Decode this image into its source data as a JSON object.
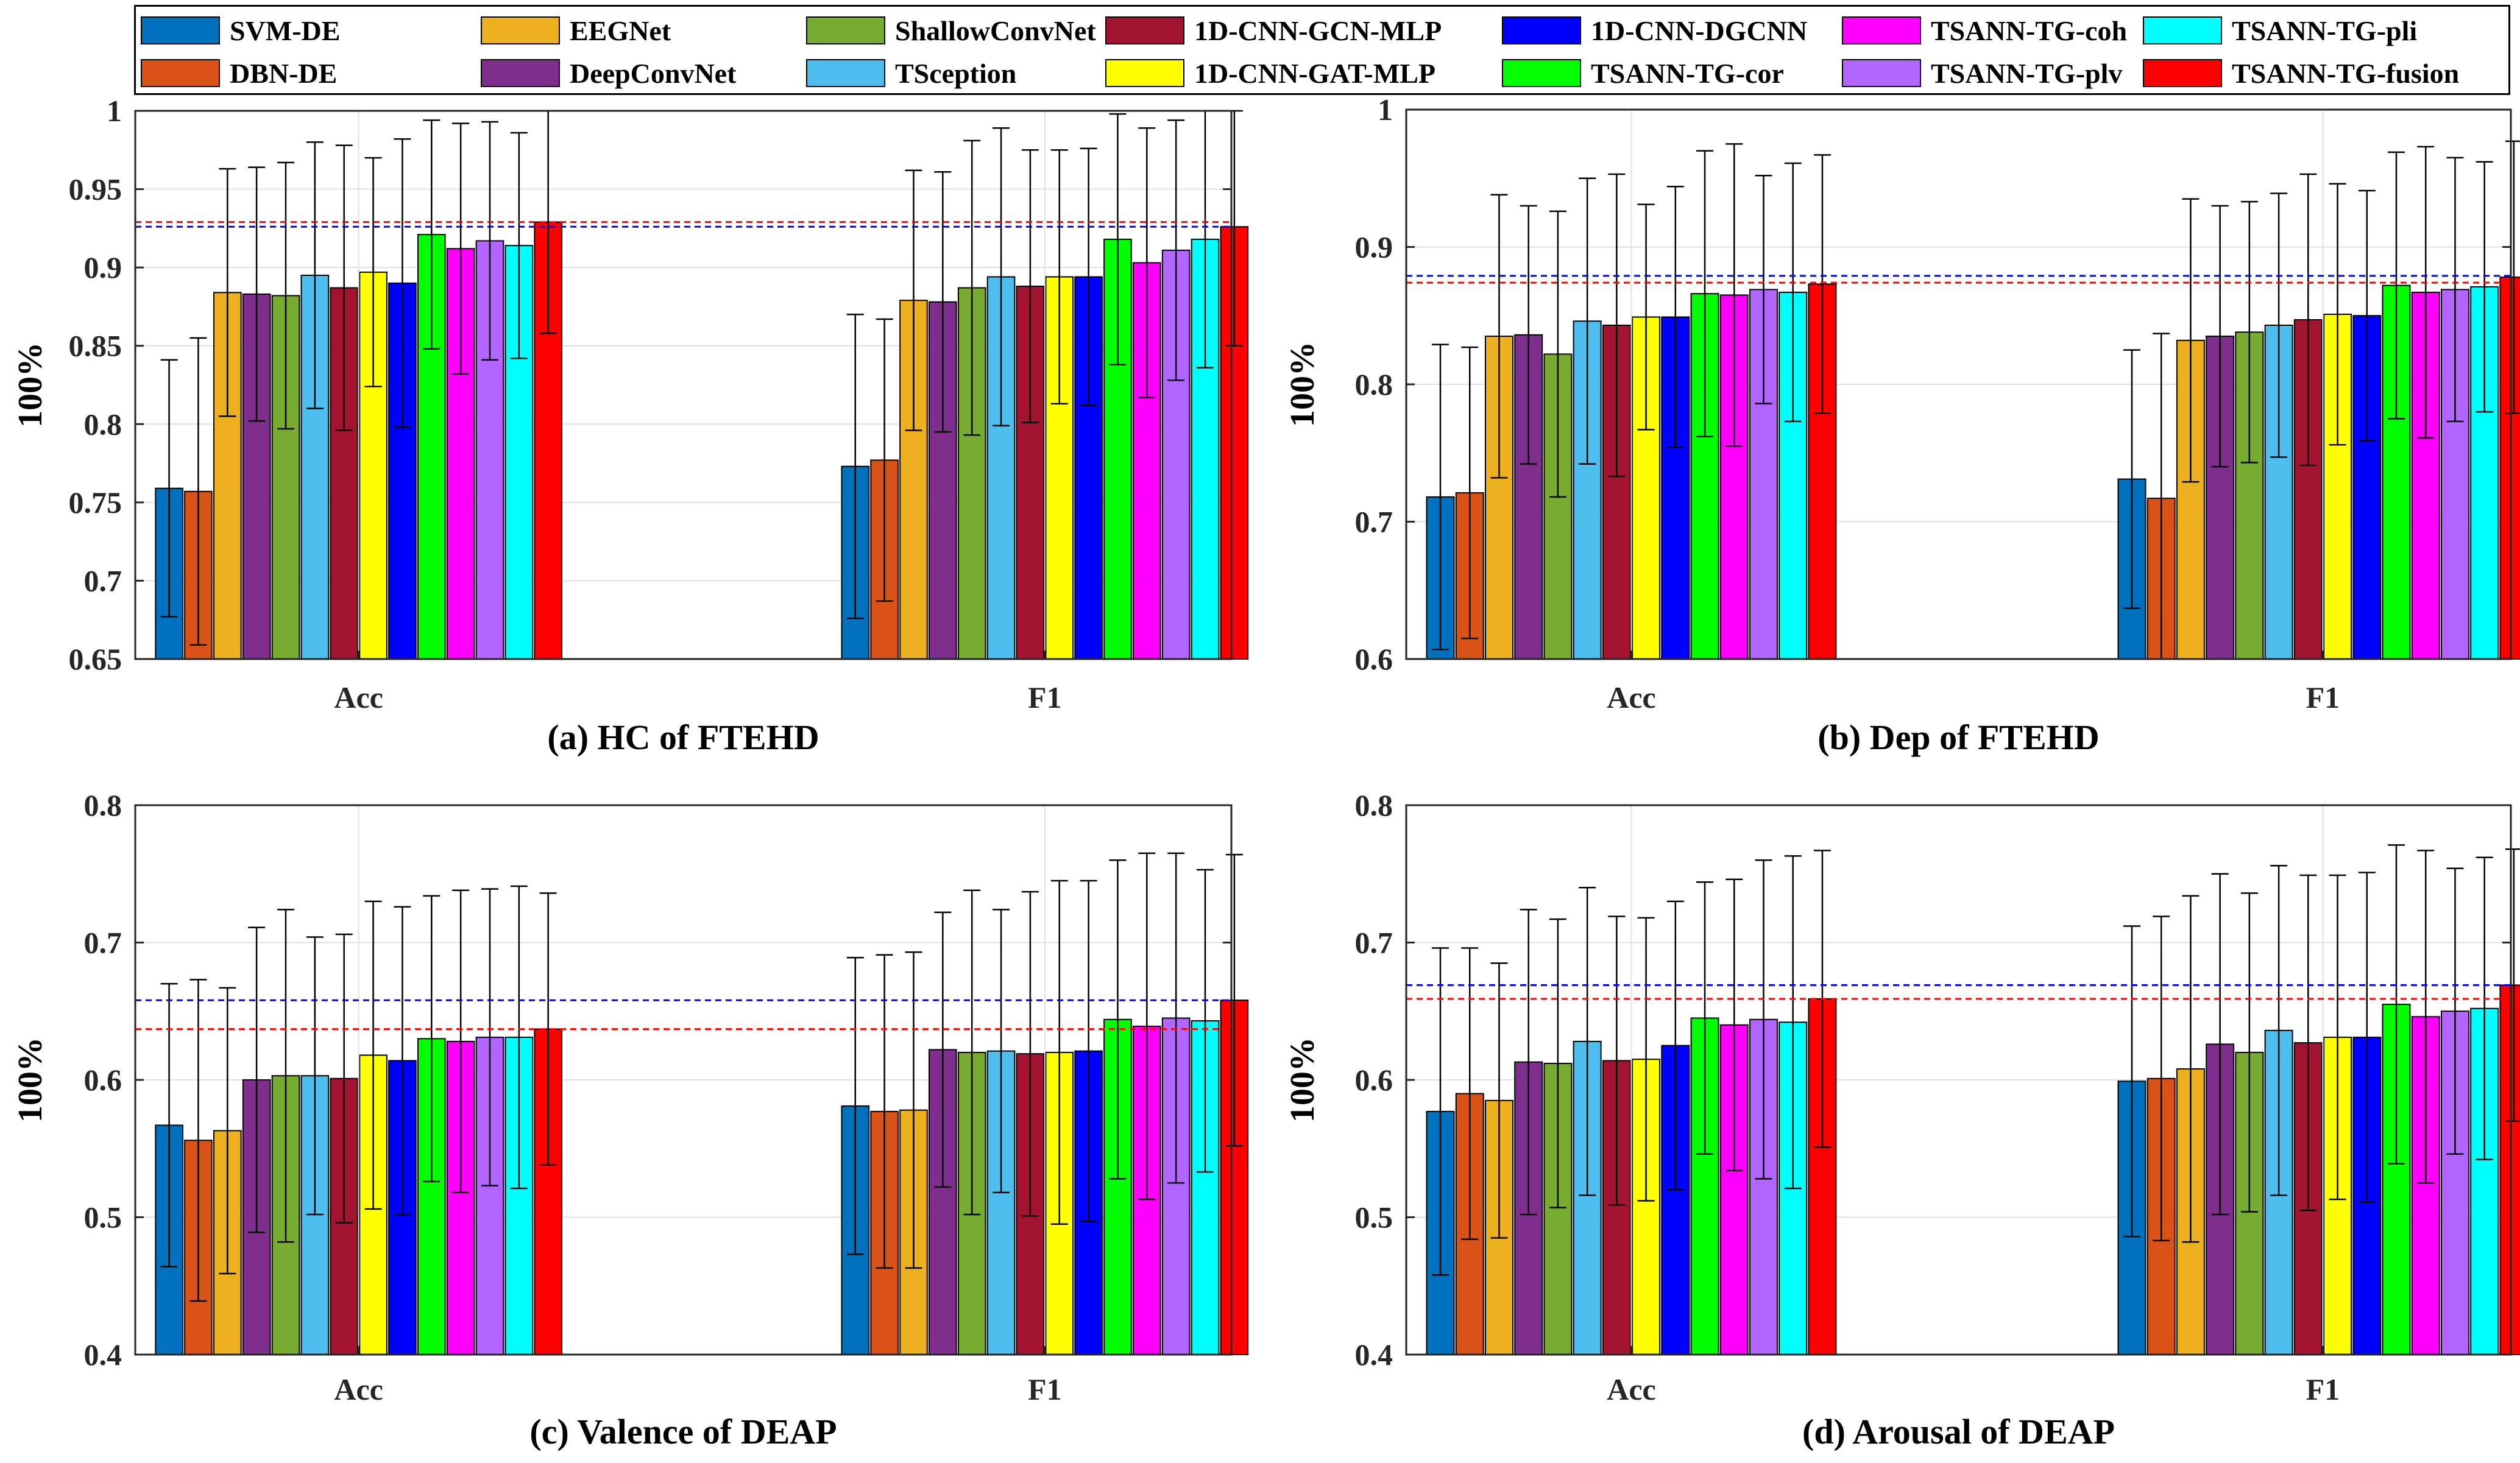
{
  "legend_entries": [
    {
      "name": "SVM-DE",
      "color": "#0072BD"
    },
    {
      "name": "DBN-DE",
      "color": "#D95319"
    },
    {
      "name": "EEGNet",
      "color": "#EDB120"
    },
    {
      "name": "DeepConvNet",
      "color": "#7E2F8E"
    },
    {
      "name": "ShallowConvNet",
      "color": "#77AC30"
    },
    {
      "name": "TSception",
      "color": "#4DBEEE"
    },
    {
      "name": "1D-CNN-GCN-MLP",
      "color": "#A2142F"
    },
    {
      "name": "1D-CNN-GAT-MLP",
      "color": "#FFFF00"
    },
    {
      "name": "1D-CNN-DGCNN",
      "color": "#0000FF"
    },
    {
      "name": "TSANN-TG-cor",
      "color": "#00FF00"
    },
    {
      "name": "TSANN-TG-coh",
      "color": "#FF00FF"
    },
    {
      "name": "TSANN-TG-plv",
      "color": "#B266FF"
    },
    {
      "name": "TSANN-TG-pli",
      "color": "#00FFFF"
    },
    {
      "name": "TSANN-TG-fusion",
      "color": "#FF0000"
    }
  ],
  "chart_data": [
    {
      "type": "bar",
      "title": "(a) HC of FTEHD",
      "ylabel": "100%",
      "categories": [
        "Acc",
        "F1"
      ],
      "ylim": [
        0.65,
        1
      ],
      "yticks": [
        "0.65",
        "0.7",
        "0.75",
        "0.8",
        "0.85",
        "0.9",
        "0.95",
        "1"
      ],
      "reference_lines": [
        {
          "color": "#0000FF",
          "value": 0.926
        },
        {
          "color": "#FF0000",
          "value": 0.929
        }
      ],
      "series": [
        {
          "name": "SVM-DE",
          "values": [
            0.759,
            0.773
          ],
          "errors": [
            0.082,
            0.097
          ]
        },
        {
          "name": "DBN-DE",
          "values": [
            0.757,
            0.777
          ],
          "errors": [
            0.098,
            0.09
          ]
        },
        {
          "name": "EEGNet",
          "values": [
            0.884,
            0.879
          ],
          "errors": [
            0.079,
            0.083
          ]
        },
        {
          "name": "DeepConvNet",
          "values": [
            0.883,
            0.878
          ],
          "errors": [
            0.081,
            0.083
          ]
        },
        {
          "name": "ShallowConvNet",
          "values": [
            0.882,
            0.887
          ],
          "errors": [
            0.085,
            0.094
          ]
        },
        {
          "name": "TSception",
          "values": [
            0.895,
            0.894
          ],
          "errors": [
            0.085,
            0.095
          ]
        },
        {
          "name": "1D-CNN-GCN-MLP",
          "values": [
            0.887,
            0.888
          ],
          "errors": [
            0.091,
            0.087
          ]
        },
        {
          "name": "1D-CNN-GAT-MLP",
          "values": [
            0.897,
            0.894
          ],
          "errors": [
            0.073,
            0.081
          ]
        },
        {
          "name": "1D-CNN-DGCNN",
          "values": [
            0.89,
            0.894
          ],
          "errors": [
            0.092,
            0.082
          ]
        },
        {
          "name": "TSANN-TG-cor",
          "values": [
            0.921,
            0.918
          ],
          "errors": [
            0.073,
            0.08
          ]
        },
        {
          "name": "TSANN-TG-coh",
          "values": [
            0.912,
            0.903
          ],
          "errors": [
            0.08,
            0.086
          ]
        },
        {
          "name": "TSANN-TG-plv",
          "values": [
            0.917,
            0.911
          ],
          "errors": [
            0.076,
            0.083
          ]
        },
        {
          "name": "TSANN-TG-pli",
          "values": [
            0.914,
            0.918
          ],
          "errors": [
            0.072,
            0.082
          ]
        },
        {
          "name": "TSANN-TG-fusion",
          "values": [
            0.929,
            0.926
          ],
          "errors": [
            0.071,
            0.076
          ]
        }
      ]
    },
    {
      "type": "bar",
      "title": "(b) Dep of FTEHD",
      "ylabel": "100%",
      "categories": [
        "Acc",
        "F1"
      ],
      "ylim": [
        0.6,
        1
      ],
      "yticks": [
        "0.6",
        "0.7",
        "0.8",
        "0.9",
        "1"
      ],
      "reference_lines": [
        {
          "color": "#0000FF",
          "value": 0.879
        },
        {
          "color": "#FF0000",
          "value": 0.874
        }
      ],
      "series": [
        {
          "name": "SVM-DE",
          "values": [
            0.718,
            0.731
          ],
          "errors": [
            0.111,
            0.094
          ]
        },
        {
          "name": "DBN-DE",
          "values": [
            0.721,
            0.717
          ],
          "errors": [
            0.106,
            0.12
          ]
        },
        {
          "name": "EEGNet",
          "values": [
            0.835,
            0.832
          ],
          "errors": [
            0.103,
            0.103
          ]
        },
        {
          "name": "DeepConvNet",
          "values": [
            0.836,
            0.835
          ],
          "errors": [
            0.094,
            0.095
          ]
        },
        {
          "name": "ShallowConvNet",
          "values": [
            0.822,
            0.838
          ],
          "errors": [
            0.104,
            0.095
          ]
        },
        {
          "name": "TSception",
          "values": [
            0.846,
            0.843
          ],
          "errors": [
            0.104,
            0.096
          ]
        },
        {
          "name": "1D-CNN-GCN-MLP",
          "values": [
            0.843,
            0.847
          ],
          "errors": [
            0.11,
            0.106
          ]
        },
        {
          "name": "1D-CNN-GAT-MLP",
          "values": [
            0.849,
            0.851
          ],
          "errors": [
            0.082,
            0.095
          ]
        },
        {
          "name": "1D-CNN-DGCNN",
          "values": [
            0.849,
            0.85
          ],
          "errors": [
            0.095,
            0.091
          ]
        },
        {
          "name": "TSANN-TG-cor",
          "values": [
            0.866,
            0.872
          ],
          "errors": [
            0.104,
            0.097
          ]
        },
        {
          "name": "TSANN-TG-coh",
          "values": [
            0.865,
            0.867
          ],
          "errors": [
            0.11,
            0.106
          ]
        },
        {
          "name": "TSANN-TG-plv",
          "values": [
            0.869,
            0.869
          ],
          "errors": [
            0.083,
            0.096
          ]
        },
        {
          "name": "TSANN-TG-pli",
          "values": [
            0.867,
            0.871
          ],
          "errors": [
            0.094,
            0.091
          ]
        },
        {
          "name": "TSANN-TG-fusion",
          "values": [
            0.873,
            0.878
          ],
          "errors": [
            0.094,
            0.099
          ]
        }
      ]
    },
    {
      "type": "bar",
      "title": "(c) Valence of DEAP",
      "ylabel": "100%",
      "categories": [
        "Acc",
        "F1"
      ],
      "ylim": [
        0.4,
        0.8
      ],
      "yticks": [
        "0.4",
        "0.5",
        "0.6",
        "0.7",
        "0.8"
      ],
      "reference_lines": [
        {
          "color": "#0000FF",
          "value": 0.658
        },
        {
          "color": "#FF0000",
          "value": 0.637
        }
      ],
      "series": [
        {
          "name": "SVM-DE",
          "values": [
            0.567,
            0.581
          ],
          "errors": [
            0.103,
            0.108
          ]
        },
        {
          "name": "DBN-DE",
          "values": [
            0.556,
            0.577
          ],
          "errors": [
            0.117,
            0.114
          ]
        },
        {
          "name": "EEGNet",
          "values": [
            0.563,
            0.578
          ],
          "errors": [
            0.104,
            0.115
          ]
        },
        {
          "name": "DeepConvNet",
          "values": [
            0.6,
            0.622
          ],
          "errors": [
            0.111,
            0.1
          ]
        },
        {
          "name": "ShallowConvNet",
          "values": [
            0.603,
            0.62
          ],
          "errors": [
            0.121,
            0.118
          ]
        },
        {
          "name": "TSception",
          "values": [
            0.603,
            0.621
          ],
          "errors": [
            0.101,
            0.103
          ]
        },
        {
          "name": "1D-CNN-GCN-MLP",
          "values": [
            0.601,
            0.619
          ],
          "errors": [
            0.105,
            0.118
          ]
        },
        {
          "name": "1D-CNN-GAT-MLP",
          "values": [
            0.618,
            0.62
          ],
          "errors": [
            0.112,
            0.125
          ]
        },
        {
          "name": "1D-CNN-DGCNN",
          "values": [
            0.614,
            0.621
          ],
          "errors": [
            0.112,
            0.124
          ]
        },
        {
          "name": "TSANN-TG-cor",
          "values": [
            0.63,
            0.644
          ],
          "errors": [
            0.104,
            0.116
          ]
        },
        {
          "name": "TSANN-TG-coh",
          "values": [
            0.628,
            0.639
          ],
          "errors": [
            0.11,
            0.126
          ]
        },
        {
          "name": "TSANN-TG-plv",
          "values": [
            0.631,
            0.645
          ],
          "errors": [
            0.108,
            0.12
          ]
        },
        {
          "name": "TSANN-TG-pli",
          "values": [
            0.631,
            0.643
          ],
          "errors": [
            0.11,
            0.11
          ]
        },
        {
          "name": "TSANN-TG-fusion",
          "values": [
            0.637,
            0.658
          ],
          "errors": [
            0.099,
            0.106
          ]
        }
      ]
    },
    {
      "type": "bar",
      "title": "(d) Arousal of DEAP",
      "ylabel": "100%",
      "categories": [
        "Acc",
        "F1"
      ],
      "ylim": [
        0.4,
        0.8
      ],
      "yticks": [
        "0.4",
        "0.5",
        "0.6",
        "0.7",
        "0.8"
      ],
      "reference_lines": [
        {
          "color": "#0000FF",
          "value": 0.669
        },
        {
          "color": "#FF0000",
          "value": 0.659
        }
      ],
      "series": [
        {
          "name": "SVM-DE",
          "values": [
            0.577,
            0.599
          ],
          "errors": [
            0.119,
            0.113
          ]
        },
        {
          "name": "DBN-DE",
          "values": [
            0.59,
            0.601
          ],
          "errors": [
            0.106,
            0.118
          ]
        },
        {
          "name": "EEGNet",
          "values": [
            0.585,
            0.608
          ],
          "errors": [
            0.1,
            0.126
          ]
        },
        {
          "name": "DeepConvNet",
          "values": [
            0.613,
            0.626
          ],
          "errors": [
            0.111,
            0.124
          ]
        },
        {
          "name": "ShallowConvNet",
          "values": [
            0.612,
            0.62
          ],
          "errors": [
            0.105,
            0.116
          ]
        },
        {
          "name": "TSception",
          "values": [
            0.628,
            0.636
          ],
          "errors": [
            0.112,
            0.12
          ]
        },
        {
          "name": "1D-CNN-GCN-MLP",
          "values": [
            0.614,
            0.627
          ],
          "errors": [
            0.105,
            0.122
          ]
        },
        {
          "name": "1D-CNN-GAT-MLP",
          "values": [
            0.615,
            0.631
          ],
          "errors": [
            0.103,
            0.118
          ]
        },
        {
          "name": "1D-CNN-DGCNN",
          "values": [
            0.625,
            0.631
          ],
          "errors": [
            0.105,
            0.12
          ]
        },
        {
          "name": "TSANN-TG-cor",
          "values": [
            0.645,
            0.655
          ],
          "errors": [
            0.099,
            0.116
          ]
        },
        {
          "name": "TSANN-TG-coh",
          "values": [
            0.64,
            0.646
          ],
          "errors": [
            0.106,
            0.121
          ]
        },
        {
          "name": "TSANN-TG-plv",
          "values": [
            0.644,
            0.65
          ],
          "errors": [
            0.116,
            0.104
          ]
        },
        {
          "name": "TSANN-TG-pli",
          "values": [
            0.642,
            0.652
          ],
          "errors": [
            0.121,
            0.11
          ]
        },
        {
          "name": "TSANN-TG-fusion",
          "values": [
            0.659,
            0.669
          ],
          "errors": [
            0.108,
            0.099
          ]
        }
      ]
    }
  ]
}
